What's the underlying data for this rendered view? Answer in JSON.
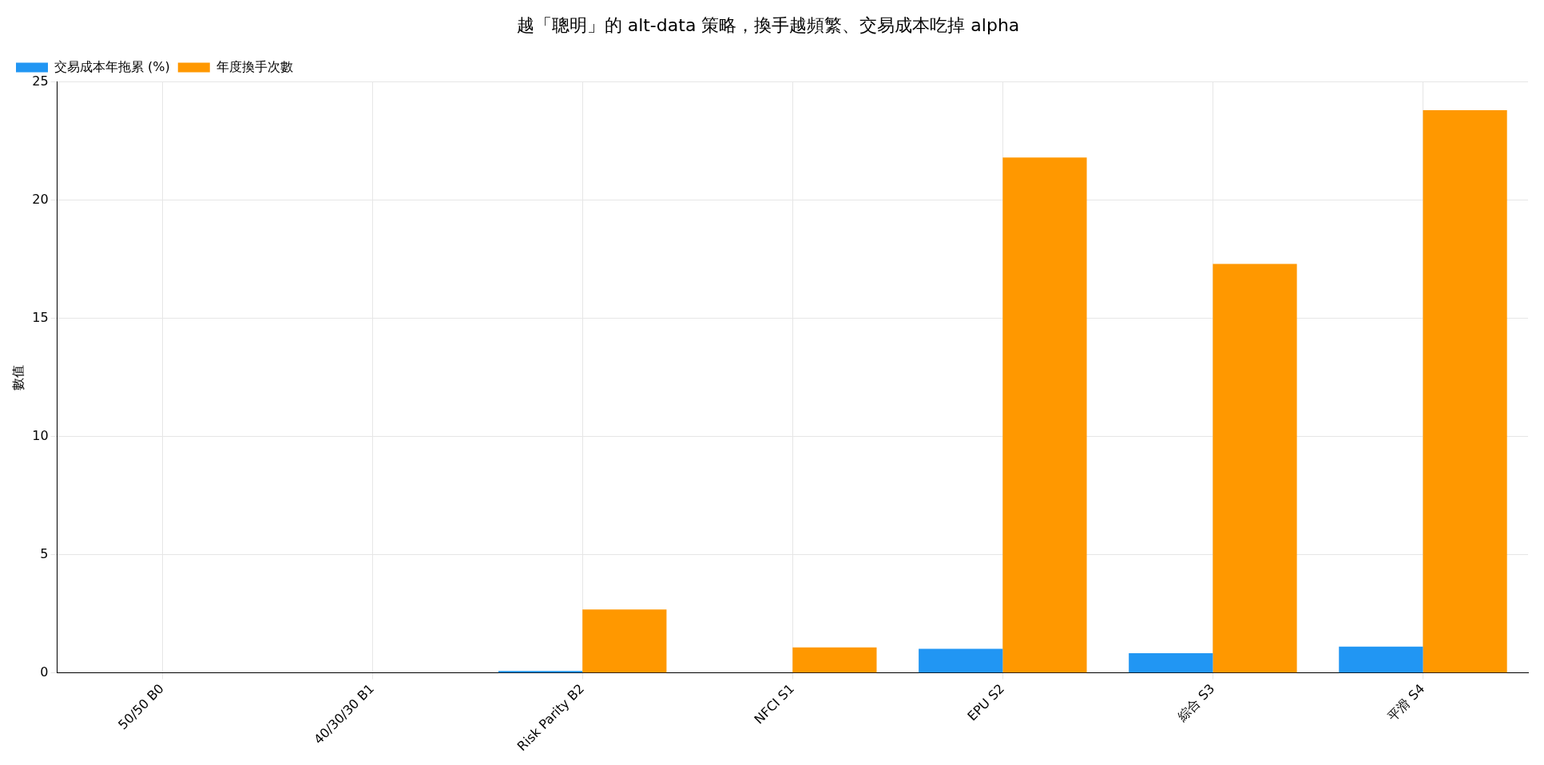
{
  "chart_data": {
    "type": "bar",
    "title": "越「聰明」的 alt-data 策略，換手越頻繁、交易成本吃掉 alpha",
    "ylabel": "數值",
    "categories": [
      "50/50 B0",
      "40/30/30 B1",
      "Risk Parity B2",
      "NFCI S1",
      "EPU S2",
      "綜合 S3",
      "平滑 S4"
    ],
    "series": [
      {
        "name": "交易成本年拖累 (%)",
        "color": "#2196f3",
        "values": [
          0,
          0,
          0.08,
          0,
          1.02,
          0.83,
          1.11
        ]
      },
      {
        "name": "年度換手次數",
        "color": "#ff9800",
        "values": [
          0,
          0,
          2.68,
          1.08,
          21.8,
          17.3,
          23.8
        ]
      }
    ],
    "ylim": [
      0,
      25
    ],
    "yticks": [
      0,
      5,
      10,
      15,
      20,
      25
    ],
    "grid": true,
    "legend": "top left"
  }
}
